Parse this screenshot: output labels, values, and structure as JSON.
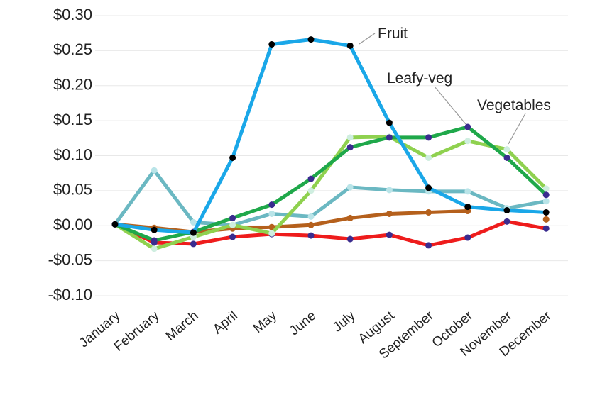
{
  "chart_data": {
    "type": "line",
    "categories": [
      "January",
      "February",
      "March",
      "April",
      "May",
      "June",
      "July",
      "August",
      "September",
      "October",
      "November",
      "December"
    ],
    "ylim": [
      -0.1,
      0.3
    ],
    "yticks": [
      {
        "value": -0.1,
        "label": "-$0.10"
      },
      {
        "value": -0.05,
        "label": "-$0.05"
      },
      {
        "value": 0,
        "label": "$0.00"
      },
      {
        "value": 0.05,
        "label": "$0.05"
      },
      {
        "value": 0.1,
        "label": "$0.10"
      },
      {
        "value": 0.15,
        "label": "$0.15"
      },
      {
        "value": 0.2,
        "label": "$0.20"
      },
      {
        "value": 0.25,
        "label": "$0.25"
      },
      {
        "value": 0.3,
        "label": "$0.30"
      }
    ],
    "grid": true,
    "series": [
      {
        "color": "#6bb8c2",
        "marker_color": "#b9e4e8",
        "values": [
          0.002,
          0.079,
          0.005,
          0.001,
          0.017,
          0.013,
          0.055,
          0.051,
          0.049,
          0.049,
          0.025,
          0.035
        ]
      },
      {
        "color": "#b5601c",
        "marker_color": "#b5601c",
        "values": [
          0.002,
          -0.003,
          -0.009,
          -0.004,
          -0.002,
          0.001,
          0.011,
          0.017,
          0.019,
          0.021,
          null,
          0.009
        ]
      },
      {
        "color": "#ee1c1c",
        "marker_color": "#3a2c8f",
        "values": [
          0.002,
          -0.024,
          -0.026,
          -0.016,
          -0.012,
          -0.014,
          -0.019,
          -0.013,
          -0.028,
          -0.017,
          0.006,
          -0.004
        ]
      },
      {
        "name": "Vegetables",
        "color": "#8fd14f",
        "marker_color": "#cfeee0",
        "values": [
          0.002,
          -0.033,
          -0.016,
          0.001,
          -0.011,
          0.05,
          0.126,
          0.127,
          0.097,
          0.121,
          0.109,
          0.053
        ]
      },
      {
        "name": "Leafy-veg",
        "color": "#1fa84a",
        "marker_color": "#3a2c8f",
        "values": [
          0.002,
          -0.021,
          -0.009,
          0.011,
          0.03,
          0.067,
          0.112,
          0.126,
          0.126,
          0.141,
          0.097,
          0.044
        ]
      },
      {
        "name": "Fruit",
        "color": "#1aa7e8",
        "marker_color": "#000000",
        "values": [
          0.002,
          -0.006,
          -0.01,
          0.097,
          0.259,
          0.266,
          0.257,
          0.147,
          0.054,
          0.027,
          0.022,
          0.019
        ]
      }
    ]
  }
}
